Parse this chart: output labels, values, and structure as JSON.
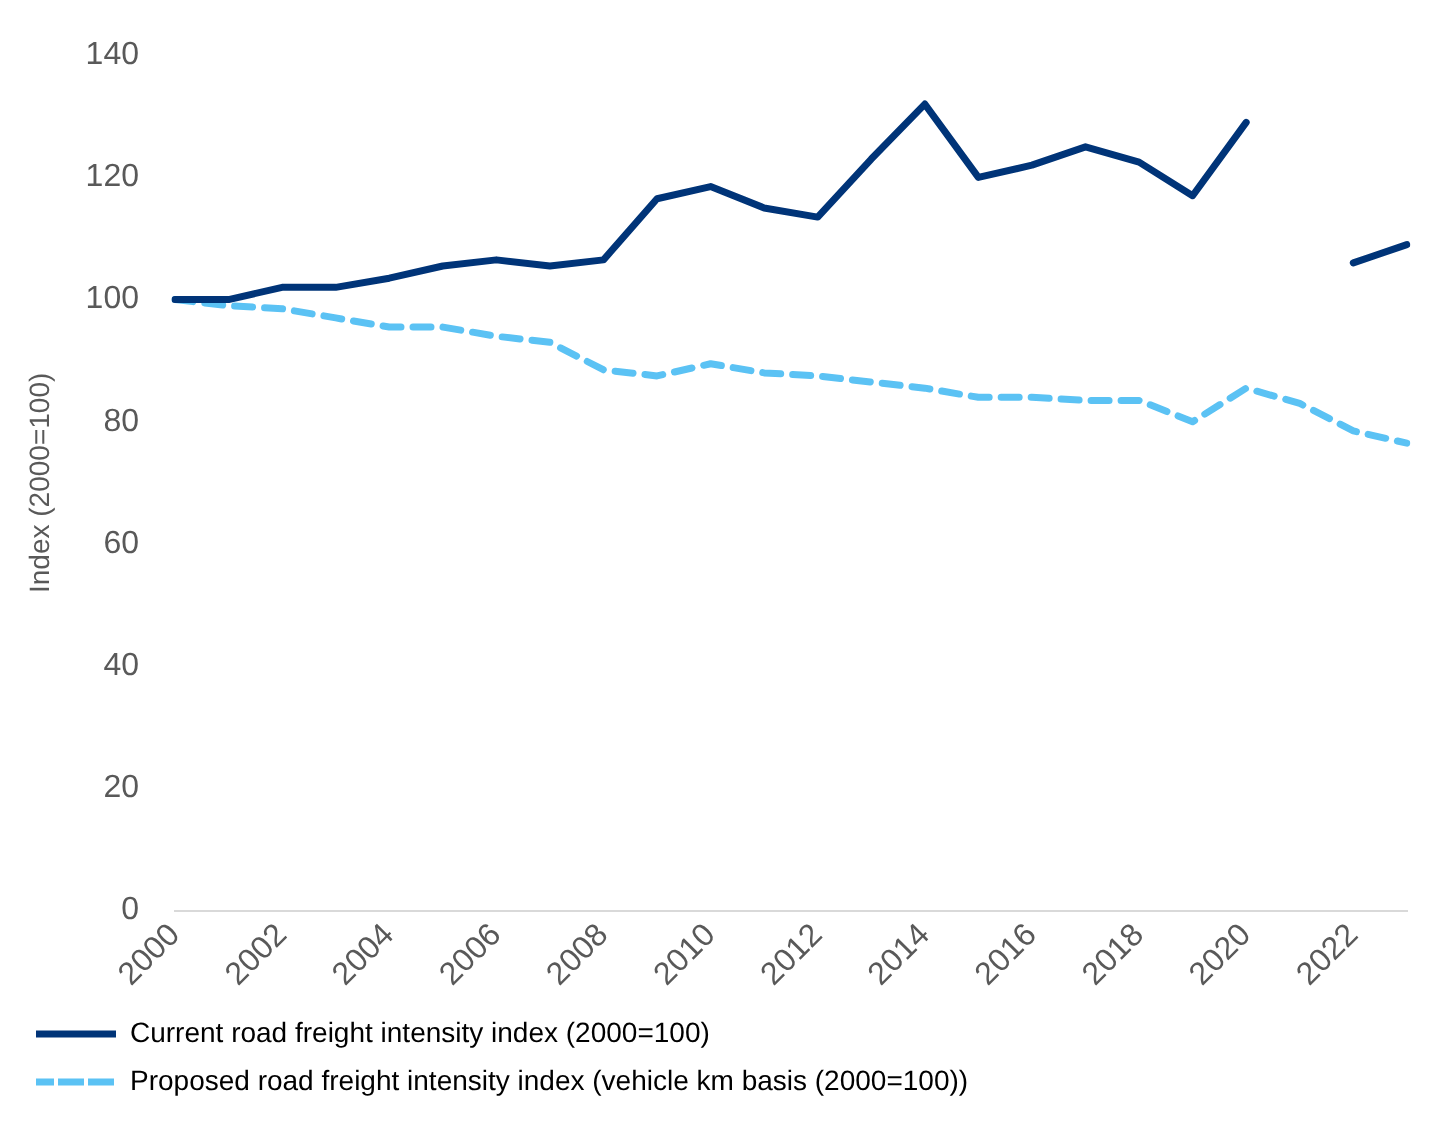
{
  "chart_data": {
    "type": "line",
    "ylabel": "Index (2000=100)",
    "categories": [
      "2000",
      null,
      "2002",
      null,
      "2004",
      null,
      "2006",
      null,
      "2008",
      null,
      "2010",
      null,
      "2012",
      null,
      "2014",
      null,
      "2016",
      null,
      "2018",
      null,
      "2020",
      null,
      "2022",
      null
    ],
    "series": [
      {
        "name": "Current road freight intensity index (2000=100)",
        "color": "#003478",
        "line_style": "solid",
        "values": [
          100,
          100,
          102,
          102,
          103.5,
          105.5,
          106.5,
          105.5,
          106.5,
          116.5,
          118.5,
          115,
          113.5,
          123,
          132,
          120,
          122,
          125,
          122.5,
          117,
          129,
          null,
          106,
          109
        ]
      },
      {
        "name": "Proposed road freight intensity index (vehicle km basis (2000=100))",
        "color": "#5bc2f4",
        "line_style": "dashed",
        "values": [
          100,
          99,
          98.5,
          97,
          95.5,
          95.5,
          94,
          93,
          88.5,
          87.5,
          89.5,
          88,
          87.5,
          86.5,
          85.5,
          84,
          84,
          83.5,
          83.5,
          80,
          85.5,
          83,
          78.5,
          76.5
        ]
      }
    ],
    "ylim": [
      0,
      140
    ],
    "yticks": [
      0,
      20,
      40,
      60,
      80,
      100,
      120,
      140
    ],
    "grid": false,
    "legend": "bottom",
    "marker": "none"
  }
}
